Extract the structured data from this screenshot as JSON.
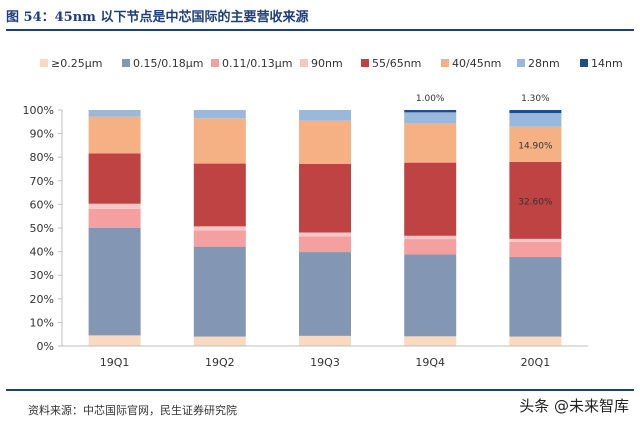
{
  "header": {
    "title": "图 54：45nm 以下节点是中芯国际的主要营收来源"
  },
  "footer": {
    "source": "资料来源：中芯国际官网，民生证券研究院",
    "watermark": "头条 @未来智库"
  },
  "chart_data": {
    "type": "bar",
    "stacked": true,
    "title": "45nm 以下节点是中芯国际的主要营收来源",
    "categories": [
      "19Q1",
      "19Q2",
      "19Q3",
      "19Q4",
      "20Q1"
    ],
    "ylim": [
      0,
      100
    ],
    "yticks": [
      "0%",
      "10%",
      "20%",
      "30%",
      "40%",
      "50%",
      "60%",
      "70%",
      "80%",
      "90%",
      "100%"
    ],
    "legend_position": "top",
    "series": [
      {
        "name": "≥0.25μm",
        "color": "#f9d9bf",
        "values": [
          4.5,
          4.0,
          4.3,
          4.1,
          4.0
        ]
      },
      {
        "name": "0.15/0.18μm",
        "color": "#8397b5",
        "values": [
          45.5,
          38.1,
          35.5,
          34.7,
          33.7
        ]
      },
      {
        "name": "0.11/0.13μm",
        "color": "#f4a0a0",
        "values": [
          8.1,
          6.9,
          6.7,
          6.5,
          6.4
        ]
      },
      {
        "name": "90nm",
        "color": "#f6c6c6",
        "values": [
          2.2,
          1.7,
          1.6,
          1.4,
          1.3
        ]
      },
      {
        "name": "55/65nm",
        "color": "#bf4343",
        "values": [
          21.3,
          26.6,
          29.1,
          31.0,
          32.6
        ]
      },
      {
        "name": "40/45nm",
        "color": "#f5b184",
        "values": [
          15.6,
          19.2,
          18.3,
          16.8,
          14.9
        ]
      },
      {
        "name": "28nm",
        "color": "#9ab8dc",
        "values": [
          2.8,
          3.5,
          4.5,
          4.5,
          5.8
        ]
      },
      {
        "name": "14nm",
        "color": "#1b4f8a",
        "values": [
          0,
          0,
          0,
          1.0,
          1.3
        ]
      }
    ],
    "annotations": [
      {
        "category": "19Q4",
        "series": "14nm",
        "text": "1.00%",
        "placement": "above"
      },
      {
        "category": "20Q1",
        "series": "14nm",
        "text": "1.30%",
        "placement": "above"
      },
      {
        "category": "20Q1",
        "series": "40/45nm",
        "text": "14.90%",
        "placement": "inside"
      },
      {
        "category": "20Q1",
        "series": "55/65nm",
        "text": "32.60%",
        "placement": "inside"
      }
    ]
  }
}
